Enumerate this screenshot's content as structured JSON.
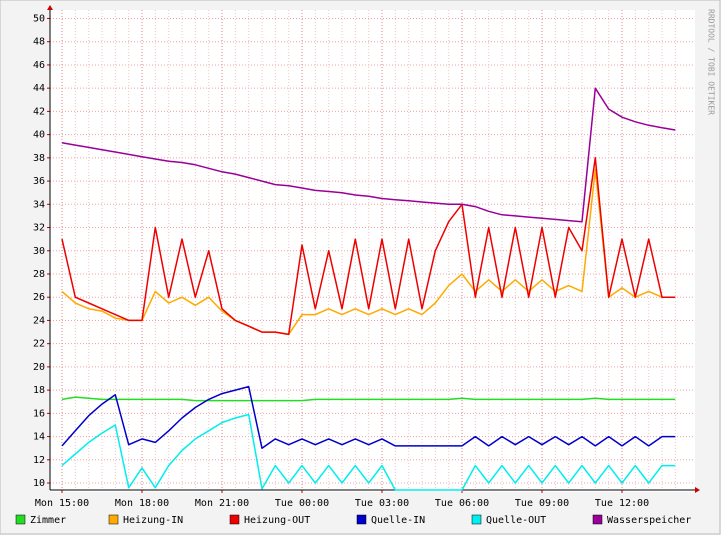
{
  "chart_data": {
    "type": "line",
    "watermark": "RRDTOOL / TOBI OETIKER",
    "categories": [
      "Mon 15:00",
      null,
      null,
      null,
      null,
      null,
      "Mon 18:00",
      null,
      null,
      null,
      null,
      null,
      "Mon 21:00",
      null,
      null,
      null,
      null,
      null,
      "Tue 00:00",
      null,
      null,
      null,
      null,
      null,
      "Tue 03:00",
      null,
      null,
      null,
      null,
      null,
      "Tue 06:00",
      null,
      null,
      null,
      null,
      null,
      "Tue 09:00",
      null,
      null,
      null,
      null,
      null,
      "Tue 12:00",
      null,
      null,
      null,
      null
    ],
    "ylim": [
      9.4,
      50.3
    ],
    "yticks": [
      10,
      12,
      14,
      16,
      18,
      20,
      22,
      24,
      26,
      28,
      30,
      32,
      34,
      36,
      38,
      40,
      42,
      44,
      46,
      48,
      50
    ],
    "grid": true,
    "series": [
      {
        "name": "Zimmer",
        "color": "#22dd22",
        "values": [
          17.2,
          17.4,
          17.3,
          17.2,
          17.2,
          17.2,
          17.2,
          17.2,
          17.2,
          17.2,
          17.1,
          17.1,
          17.1,
          17.1,
          17.1,
          17.1,
          17.1,
          17.1,
          17.1,
          17.2,
          17.2,
          17.2,
          17.2,
          17.2,
          17.2,
          17.2,
          17.2,
          17.2,
          17.2,
          17.2,
          17.3,
          17.2,
          17.2,
          17.2,
          17.2,
          17.2,
          17.2,
          17.2,
          17.2,
          17.2,
          17.3,
          17.2,
          17.2,
          17.2,
          17.2,
          17.2,
          17.2
        ]
      },
      {
        "name": "Heizung-IN",
        "color": "#ffaa00",
        "values": [
          26.5,
          25.5,
          25,
          24.8,
          24.2,
          24,
          24,
          26.5,
          25.5,
          26,
          25.3,
          26,
          24.8,
          24,
          23.5,
          23,
          23,
          22.8,
          24.5,
          24.5,
          25,
          24.5,
          25,
          24.5,
          25,
          24.5,
          25,
          24.5,
          25.5,
          27,
          28,
          26.5,
          27.5,
          26.5,
          27.5,
          26.5,
          27.5,
          26.5,
          27,
          26.5,
          37,
          26,
          26.8,
          26,
          26.5,
          26,
          26
        ]
      },
      {
        "name": "Heizung-OUT",
        "color": "#ee0000",
        "values": [
          31,
          26,
          25.5,
          25,
          24.5,
          24,
          24,
          32,
          26,
          31,
          26,
          30,
          25,
          24,
          23.5,
          23,
          23,
          22.8,
          30.5,
          25,
          30,
          25,
          31,
          25,
          31,
          25,
          31,
          25,
          30,
          32.5,
          34,
          26,
          32,
          26,
          32,
          26,
          32,
          26,
          32,
          30,
          38,
          26,
          31,
          26,
          31,
          26,
          26
        ]
      },
      {
        "name": "Quelle-IN",
        "color": "#0000cc",
        "values": [
          13.2,
          14.5,
          15.8,
          16.8,
          17.6,
          13.3,
          13.8,
          13.5,
          14.5,
          15.6,
          16.5,
          17.2,
          17.7,
          18.0,
          18.3,
          13.0,
          13.8,
          13.3,
          13.8,
          13.3,
          13.8,
          13.3,
          13.8,
          13.3,
          13.8,
          13.2,
          13.2,
          13.2,
          13.2,
          13.2,
          13.2,
          14.0,
          13.2,
          14.0,
          13.3,
          14.0,
          13.3,
          14.0,
          13.3,
          14.0,
          13.2,
          14.0,
          13.2,
          14.0,
          13.2,
          14.0,
          14.0
        ]
      },
      {
        "name": "Quelle-OUT",
        "color": "#00eeee",
        "values": [
          11.5,
          12.5,
          13.5,
          14.3,
          15.0,
          9.6,
          11.3,
          9.6,
          11.5,
          12.8,
          13.8,
          14.5,
          15.2,
          15.6,
          15.9,
          9.5,
          11.5,
          10.0,
          11.5,
          10.0,
          11.5,
          10.0,
          11.5,
          10.0,
          11.5,
          9.4,
          9.4,
          9.4,
          9.4,
          9.4,
          9.4,
          11.5,
          10,
          11.5,
          10,
          11.5,
          10,
          11.5,
          10,
          11.5,
          10,
          11.5,
          10,
          11.5,
          10,
          11.5,
          11.5
        ]
      },
      {
        "name": "Wasserspeicher",
        "color": "#990099",
        "values": [
          39.3,
          39.1,
          38.9,
          38.7,
          38.5,
          38.3,
          38.1,
          37.9,
          37.7,
          37.6,
          37.4,
          37.1,
          36.8,
          36.6,
          36.3,
          36.0,
          35.7,
          35.6,
          35.4,
          35.2,
          35.1,
          35.0,
          34.8,
          34.7,
          34.5,
          34.4,
          34.3,
          34.2,
          34.1,
          34.0,
          34.0,
          33.8,
          33.4,
          33.1,
          33.0,
          32.9,
          32.8,
          32.7,
          32.6,
          32.5,
          44.0,
          42.2,
          41.5,
          41.1,
          40.8,
          40.6,
          40.4
        ]
      }
    ]
  }
}
